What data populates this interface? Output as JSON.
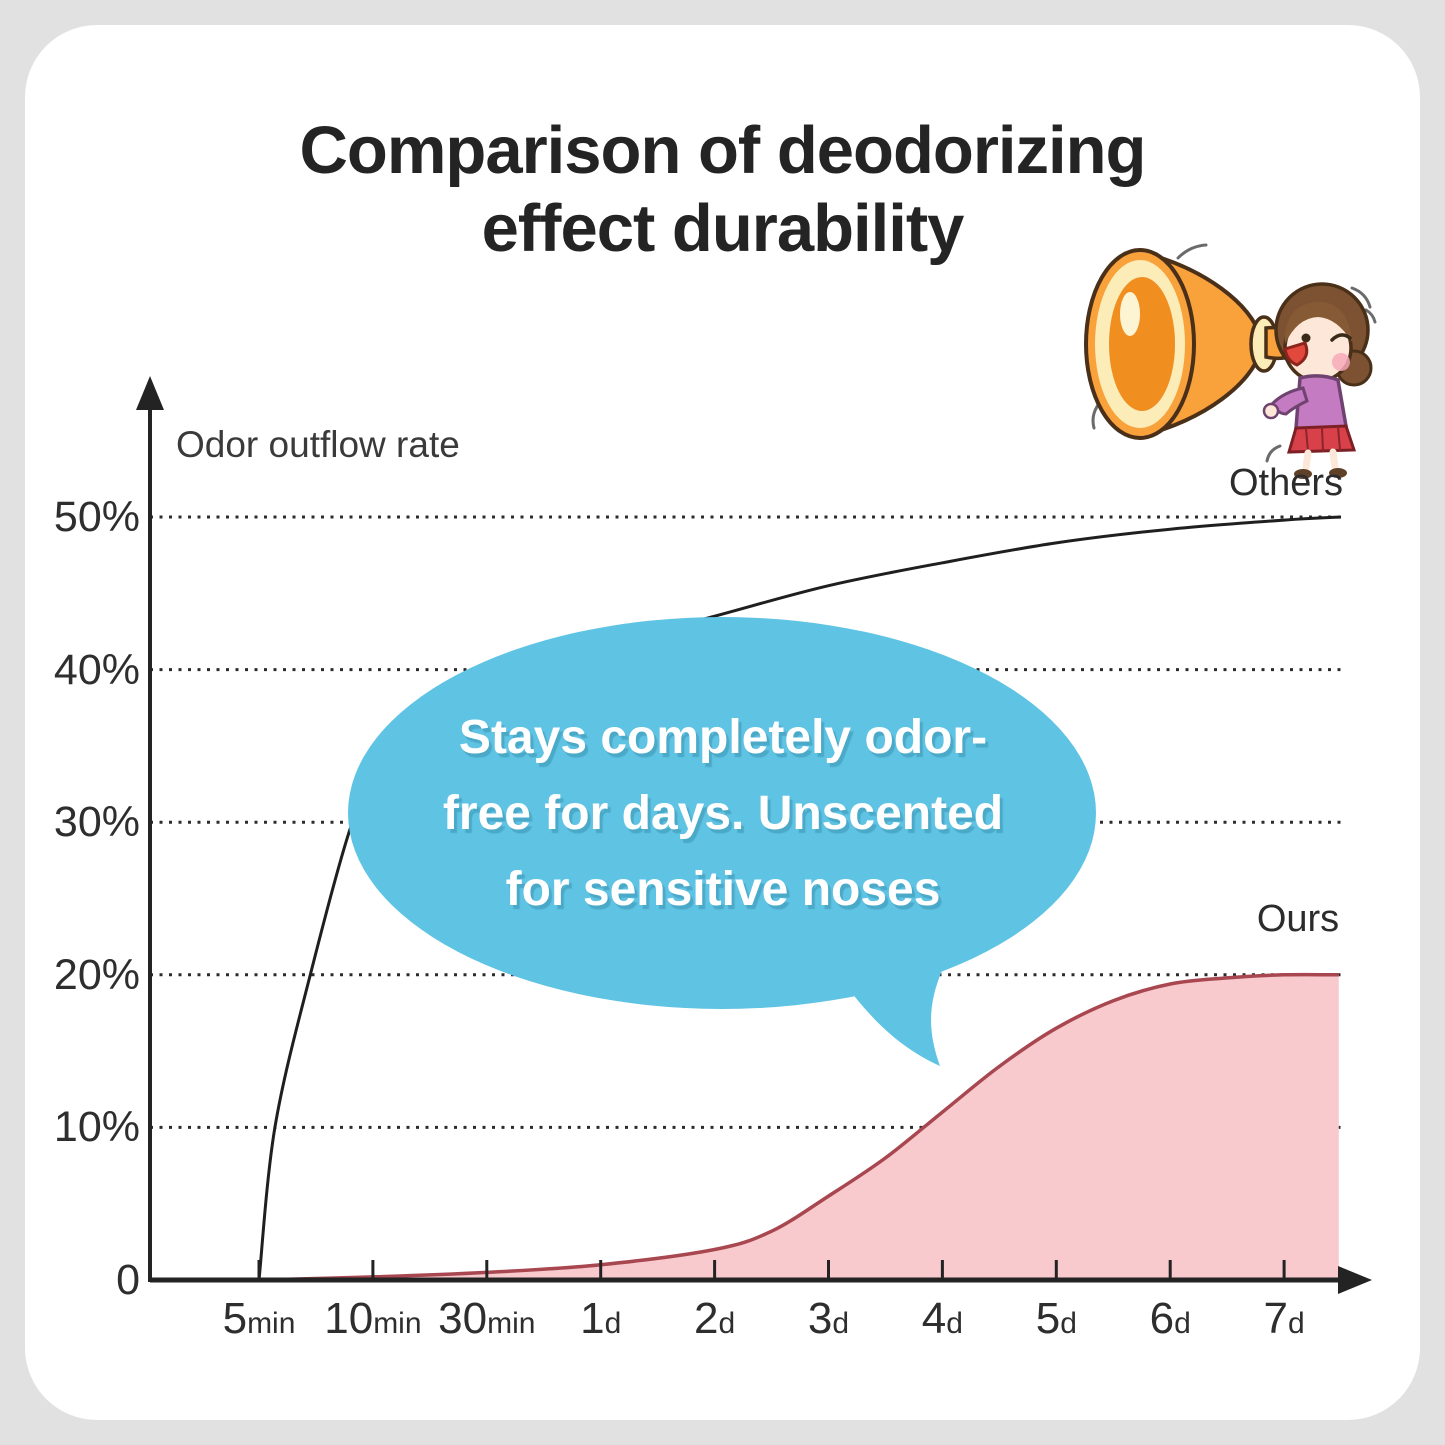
{
  "title": {
    "line1": "Comparison of deodorizing",
    "line2": "effect durability"
  },
  "bubble": {
    "line1": "Stays completely odor-",
    "line2": "free for days. Unscented",
    "line3": "for sensitive noses",
    "color": "#5fc3e4",
    "text_color": "#ffffff"
  },
  "chart": {
    "ylabel": "Odor outflow rate",
    "y_ticks": [
      {
        "label": "50%",
        "pct": 50
      },
      {
        "label": "40%",
        "pct": 40
      },
      {
        "label": "30%",
        "pct": 30
      },
      {
        "label": "20%",
        "pct": 20
      },
      {
        "label": "10%",
        "pct": 10
      },
      {
        "label": "0",
        "pct": 0
      }
    ],
    "x_ticks": [
      {
        "value": "5",
        "unit": "min"
      },
      {
        "value": "10",
        "unit": "min"
      },
      {
        "value": "30",
        "unit": "min"
      },
      {
        "value": "1",
        "unit": "d"
      },
      {
        "value": "2",
        "unit": "d"
      },
      {
        "value": "3",
        "unit": "d"
      },
      {
        "value": "4",
        "unit": "d"
      },
      {
        "value": "5",
        "unit": "d"
      },
      {
        "value": "6",
        "unit": "d"
      },
      {
        "value": "7",
        "unit": "d"
      }
    ],
    "series_labels": {
      "others": "Others",
      "ours": "Ours"
    }
  },
  "chart_data": {
    "type": "line",
    "title": "Comparison of deodorizing effect durability",
    "ylabel": "Odor outflow rate",
    "xlabel": "",
    "x_tick_labels": [
      "5min",
      "10min",
      "30min",
      "1d",
      "2d",
      "3d",
      "4d",
      "5d",
      "6d",
      "7d"
    ],
    "y_tick_labels": [
      "0",
      "10%",
      "20%",
      "30%",
      "40%",
      "50%"
    ],
    "ylim": [
      0,
      55
    ],
    "grid": "horizontal-dotted",
    "legend_position": "inline-right-of-curves",
    "annotation": "Stays completely odor-free for days. Unscented for sensitive noses",
    "series": [
      {
        "name": "Others",
        "type": "line",
        "color": "#1f1f1f",
        "values_at_ticks_pct": [
          0,
          31.5,
          39,
          41.5,
          43.5,
          45.5,
          47,
          48.3,
          49.2,
          49.8
        ],
        "points_tick_pct": [
          [
            0,
            0
          ],
          [
            0.14,
            10
          ],
          [
            0.45,
            20
          ],
          [
            0.82,
            30
          ],
          [
            1,
            31.5
          ],
          [
            1.5,
            35.5
          ],
          [
            2,
            39
          ],
          [
            3,
            41.5
          ],
          [
            4,
            43.5
          ],
          [
            5,
            45.5
          ],
          [
            6,
            47
          ],
          [
            7,
            48.3
          ],
          [
            8,
            49.2
          ],
          [
            9,
            49.8
          ],
          [
            9.5,
            50
          ]
        ]
      },
      {
        "name": "Ours",
        "type": "area",
        "line_color": "#a84750",
        "fill_color": "#f8c9cd",
        "values_at_ticks_pct": [
          0,
          0.2,
          0.5,
          1,
          2,
          5.5,
          11,
          16.5,
          19.4,
          20
        ],
        "points_tick_pct": [
          [
            0,
            0
          ],
          [
            1,
            0.2
          ],
          [
            2,
            0.5
          ],
          [
            3,
            1
          ],
          [
            4,
            2
          ],
          [
            4.5,
            3.2
          ],
          [
            5,
            5.5
          ],
          [
            5.5,
            8
          ],
          [
            6,
            11
          ],
          [
            6.5,
            14
          ],
          [
            7,
            16.5
          ],
          [
            7.5,
            18.3
          ],
          [
            8,
            19.4
          ],
          [
            8.5,
            19.8
          ],
          [
            9,
            20
          ],
          [
            9.48,
            20
          ]
        ]
      }
    ]
  },
  "illustration": {
    "name": "girl shouting into megaphone"
  }
}
